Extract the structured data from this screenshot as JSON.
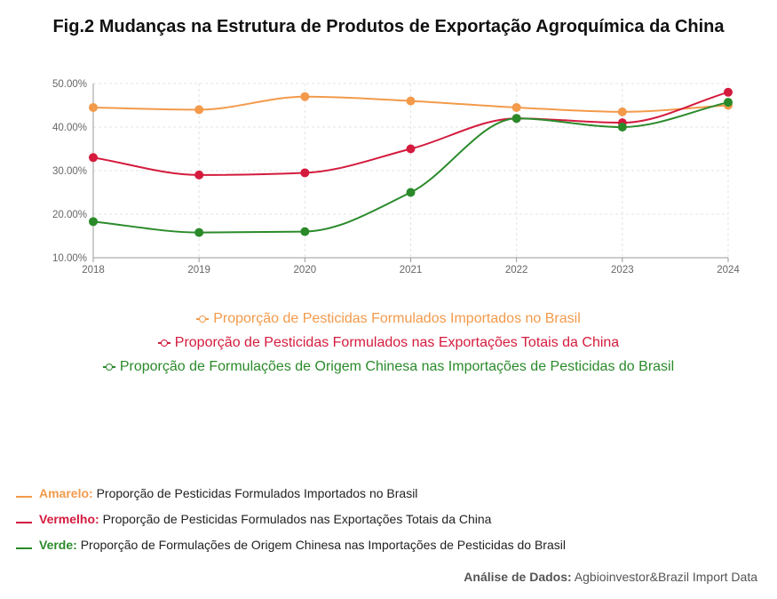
{
  "title": "Fig.2 Mudanças na Estrutura de Produtos de Exportação Agroquímica da China",
  "colors": {
    "orange": "#f39a4b",
    "red": "#d41b3e",
    "green": "#2a8a2a",
    "grid": "#e3e3e3",
    "axis": "#999999"
  },
  "chart_data": {
    "type": "line",
    "x": [
      "2018",
      "2019",
      "2020",
      "2021",
      "2022",
      "2023",
      "2024"
    ],
    "ylim": [
      10,
      50
    ],
    "yticks": [
      "10.00%",
      "20.00%",
      "30.00%",
      "40.00%",
      "50.00%"
    ],
    "ytick_values": [
      10,
      20,
      30,
      40,
      50
    ],
    "grid": true,
    "legend_position": "bottom",
    "series": [
      {
        "name": "Proporção de Pesticidas Formulados Importados no Brasil",
        "color": "#f39a4b",
        "values": [
          44.5,
          44.0,
          47.0,
          46.0,
          44.5,
          43.5,
          45.0
        ]
      },
      {
        "name": "Proporção de Pesticidas Formulados nas Exportações Totais da China",
        "color": "#d41b3e",
        "values": [
          33.0,
          29.0,
          29.5,
          35.0,
          42.0,
          41.0,
          48.0
        ]
      },
      {
        "name": "Proporção de Formulações de Origem Chinesa nas Importações de Pesticidas do Brasil",
        "color": "#2a8a2a",
        "values": [
          18.3,
          15.8,
          16.0,
          25.0,
          42.0,
          40.0,
          45.7
        ]
      }
    ]
  },
  "notes": [
    {
      "key": "Amarelo:",
      "text": " Proporção de Pesticidas Formulados Importados no Brasil",
      "color": "#f39a4b"
    },
    {
      "key": "Vermelho:",
      "text": " Proporção de Pesticidas Formulados nas Exportações Totais da China",
      "color": "#d41b3e"
    },
    {
      "key": "Verde:",
      "text": " Proporção de Formulações de Origem Chinesa nas Importações de Pesticidas do Brasil",
      "color": "#2a8a2a"
    }
  ],
  "source": {
    "key": "Análise de Dados:",
    "text": " Agbioinvestor&Brazil Import Data"
  }
}
